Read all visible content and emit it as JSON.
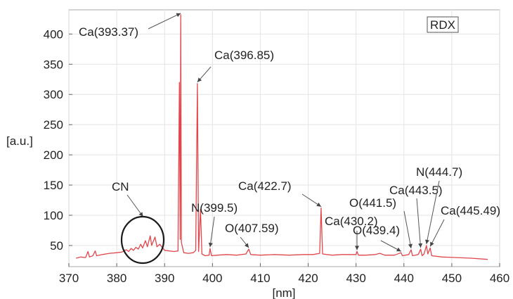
{
  "chart_data": {
    "type": "line",
    "title": "",
    "xlabel": "[nm]",
    "ylabel": "[a.u.]",
    "xlim": [
      370,
      460
    ],
    "ylim": [
      15,
      440
    ],
    "x_ticks": [
      370,
      380,
      390,
      400,
      410,
      420,
      430,
      440,
      450,
      460
    ],
    "y_ticks": [
      50,
      100,
      150,
      200,
      250,
      300,
      350,
      400
    ],
    "grid": true,
    "legend_label": "RDX",
    "legend_position": "top-right",
    "series_color": "#e0474c",
    "series": [
      {
        "name": "RDX",
        "points": [
          [
            371.5,
            29
          ],
          [
            372.5,
            31
          ],
          [
            373.5,
            30
          ],
          [
            374.0,
            40
          ],
          [
            374.3,
            31
          ],
          [
            375.0,
            33
          ],
          [
            375.5,
            41
          ],
          [
            375.8,
            33
          ],
          [
            377.0,
            35
          ],
          [
            378.5,
            37
          ],
          [
            380.0,
            38
          ],
          [
            381.0,
            39
          ],
          [
            382.0,
            43
          ],
          [
            382.5,
            40
          ],
          [
            383.0,
            45
          ],
          [
            383.5,
            42
          ],
          [
            384.0,
            47
          ],
          [
            384.5,
            44
          ],
          [
            385.0,
            52
          ],
          [
            385.4,
            46
          ],
          [
            386.0,
            58
          ],
          [
            386.4,
            48
          ],
          [
            387.0,
            66
          ],
          [
            387.3,
            50
          ],
          [
            388.0,
            64
          ],
          [
            388.4,
            48
          ],
          [
            389.0,
            52
          ],
          [
            390.0,
            42
          ],
          [
            391.0,
            41
          ],
          [
            392.0,
            40
          ],
          [
            392.8,
            41
          ],
          [
            393.1,
            320
          ],
          [
            393.25,
            60
          ],
          [
            393.37,
            432
          ],
          [
            393.5,
            55
          ],
          [
            394.0,
            38
          ],
          [
            395.0,
            37
          ],
          [
            396.0,
            38
          ],
          [
            396.5,
            42
          ],
          [
            396.85,
            318
          ],
          [
            397.1,
            40
          ],
          [
            397.5,
            110
          ],
          [
            397.8,
            36
          ],
          [
            398.5,
            33
          ],
          [
            399.3,
            34
          ],
          [
            399.5,
            45
          ],
          [
            399.8,
            33
          ],
          [
            401.0,
            34
          ],
          [
            403.0,
            35
          ],
          [
            405.0,
            34
          ],
          [
            407.0,
            36
          ],
          [
            407.59,
            44
          ],
          [
            408.0,
            35
          ],
          [
            410.0,
            34
          ],
          [
            413.0,
            35
          ],
          [
            416.0,
            34
          ],
          [
            419.0,
            35
          ],
          [
            421.0,
            35
          ],
          [
            422.4,
            37
          ],
          [
            422.7,
            112
          ],
          [
            423.0,
            36
          ],
          [
            425.0,
            34
          ],
          [
            427.0,
            35
          ],
          [
            430.0,
            35
          ],
          [
            430.2,
            40
          ],
          [
            430.5,
            34
          ],
          [
            432.0,
            34
          ],
          [
            434.0,
            35
          ],
          [
            435.0,
            37
          ],
          [
            436.0,
            34
          ],
          [
            438.0,
            34
          ],
          [
            439.4,
            38
          ],
          [
            439.7,
            33
          ],
          [
            441.0,
            35
          ],
          [
            441.5,
            43
          ],
          [
            441.8,
            33
          ],
          [
            443.0,
            35
          ],
          [
            443.5,
            44
          ],
          [
            443.8,
            33
          ],
          [
            444.2,
            36
          ],
          [
            444.7,
            50
          ],
          [
            445.0,
            36
          ],
          [
            445.49,
            46
          ],
          [
            445.8,
            33
          ],
          [
            448.0,
            31
          ],
          [
            451.0,
            30
          ],
          [
            454.0,
            29
          ],
          [
            457.5,
            27
          ]
        ]
      }
    ],
    "annotations": [
      {
        "id": "ca39337",
        "label": "Ca(393.37)",
        "peak_x": 393.37,
        "peak_y": 432
      },
      {
        "id": "ca39685",
        "label": "Ca(396.85)",
        "peak_x": 396.85,
        "peak_y": 318
      },
      {
        "id": "n3995",
        "label": "N(399.5)",
        "peak_x": 399.5,
        "peak_y": 45
      },
      {
        "id": "o40759",
        "label": "O(407.59)",
        "peak_x": 407.59,
        "peak_y": 44
      },
      {
        "id": "ca4227",
        "label": "Ca(422.7)",
        "peak_x": 422.7,
        "peak_y": 112
      },
      {
        "id": "o4415",
        "label": "O(441.5)",
        "peak_x": 441.5,
        "peak_y": 43
      },
      {
        "id": "ca4302",
        "label": "Ca(430.2)",
        "peak_x": 430.2,
        "peak_y": 40
      },
      {
        "id": "o4394",
        "label": "O(439.4)",
        "peak_x": 439.4,
        "peak_y": 38
      },
      {
        "id": "ca4435",
        "label": "Ca(443.5)",
        "peak_x": 443.5,
        "peak_y": 44
      },
      {
        "id": "n4447",
        "label": "N(444.7)",
        "peak_x": 444.7,
        "peak_y": 50
      },
      {
        "id": "ca44549",
        "label": "Ca(445.49)",
        "peak_x": 445.49,
        "peak_y": 46
      },
      {
        "id": "cn",
        "label": "CN",
        "peak_x": 385.5,
        "peak_y": 55
      }
    ]
  }
}
